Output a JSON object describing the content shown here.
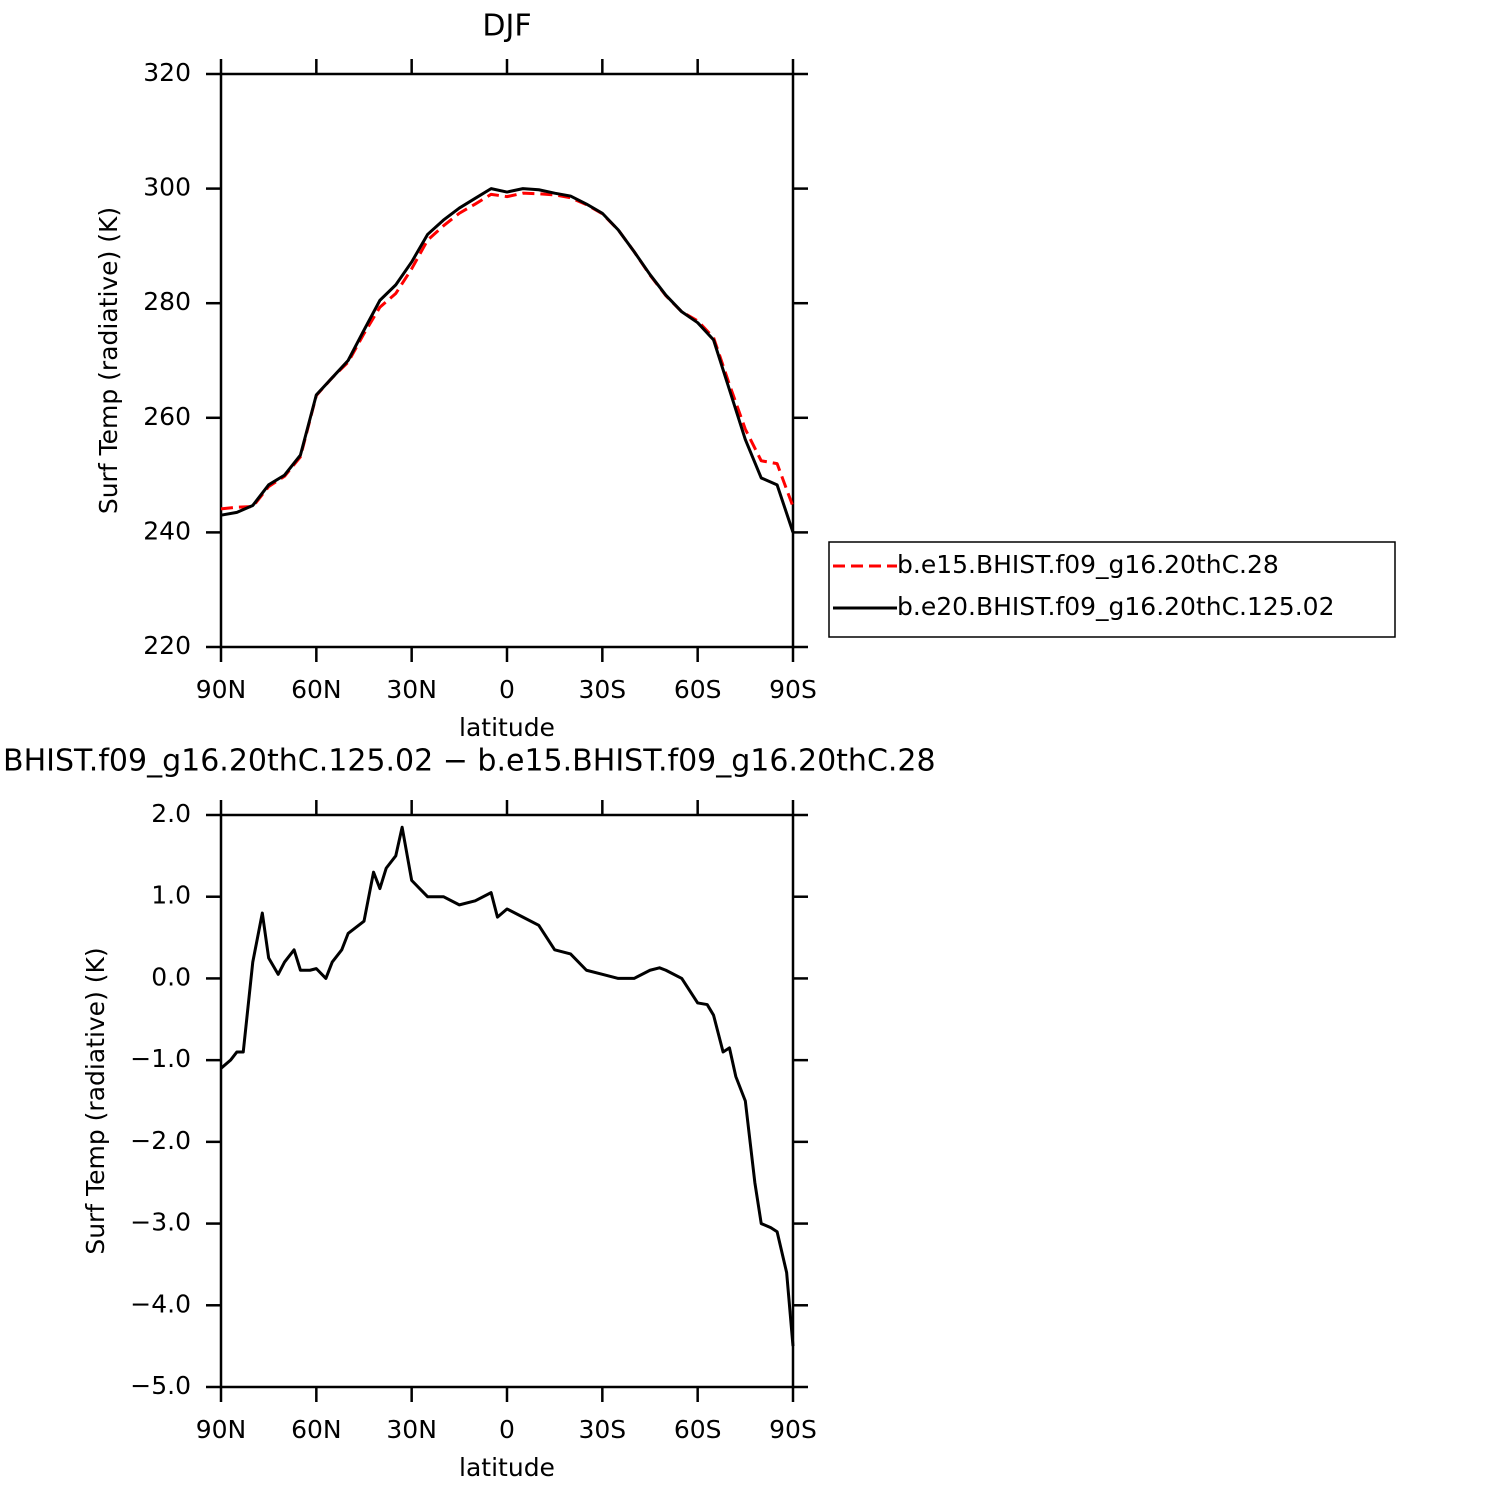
{
  "chart_data": [
    {
      "type": "line",
      "title": "DJF",
      "x_label": "latitude",
      "y_label": "Surf Temp (radiative) (K)",
      "x": [
        90,
        85,
        80,
        75,
        70,
        65,
        60,
        55,
        50,
        45,
        40,
        35,
        30,
        25,
        20,
        15,
        10,
        5,
        0,
        -5,
        -10,
        -15,
        -20,
        -25,
        -30,
        -35,
        -40,
        -45,
        -50,
        -55,
        -60,
        -65,
        -70,
        -75,
        -80,
        -85,
        -90
      ],
      "xlim": [
        90,
        -90
      ],
      "xticks": [
        {
          "value": 90,
          "label": "90N"
        },
        {
          "value": 60,
          "label": "60N"
        },
        {
          "value": 30,
          "label": "30N"
        },
        0,
        {
          "value": -30,
          "label": "30S"
        },
        {
          "value": -60,
          "label": "60S"
        },
        {
          "value": -90,
          "label": "90S"
        }
      ],
      "ylim": [
        220,
        320
      ],
      "yticks": [
        220,
        240,
        260,
        280,
        300,
        320
      ],
      "legend": "right",
      "series": [
        {
          "name": "b.e15.BHIST.f09_g16.20thC.28",
          "color": "#ff0000",
          "linestyle": "dashed",
          "values": [
            244.1,
            244.4,
            244.5,
            248.0,
            249.8,
            253.2,
            263.9,
            267.0,
            269.7,
            274.7,
            279.3,
            281.7,
            286.0,
            291.0,
            293.5,
            295.7,
            297.3,
            299.0,
            298.6,
            299.2,
            299.1,
            298.9,
            298.4,
            297.2,
            295.6,
            292.8,
            289.0,
            284.9,
            281.3,
            278.5,
            276.9,
            274.0,
            265.8,
            258.0,
            252.5,
            252.0,
            244.5
          ]
        },
        {
          "name": "b.e20.BHIST.f09_g16.20thC.125.02",
          "color": "#000000",
          "linestyle": "solid",
          "values": [
            243.0,
            243.5,
            244.7,
            248.3,
            250.0,
            253.5,
            264.0,
            267.0,
            270.0,
            275.3,
            280.5,
            283.2,
            287.2,
            292.0,
            294.5,
            296.6,
            298.3,
            300.0,
            299.4,
            300.0,
            299.8,
            299.2,
            298.7,
            297.3,
            295.7,
            292.8,
            289.0,
            285.0,
            281.4,
            278.5,
            276.6,
            273.6,
            264.9,
            256.2,
            249.5,
            248.3,
            240.0
          ]
        }
      ]
    },
    {
      "type": "line",
      "title": "BHIST.f09_g16.20thC.125.02 − b.e15.BHIST.f09_g16.20thC.28",
      "x_label": "latitude",
      "y_label": "Surf Temp (radiative) (K)",
      "x": [
        90,
        87,
        85,
        83,
        80,
        77,
        75,
        72,
        70,
        67,
        65,
        62,
        60,
        57,
        55,
        52,
        50,
        45,
        42,
        40,
        38,
        35,
        33,
        30,
        25,
        20,
        15,
        10,
        5,
        3,
        0,
        -5,
        -10,
        -15,
        -20,
        -25,
        -30,
        -35,
        -40,
        -45,
        -48,
        -50,
        -55,
        -60,
        -63,
        -65,
        -68,
        -70,
        -72,
        -75,
        -78,
        -80,
        -83,
        -85,
        -88,
        -90
      ],
      "xlim": [
        90,
        -90
      ],
      "xticks": [
        {
          "value": 90,
          "label": "90N"
        },
        {
          "value": 60,
          "label": "60N"
        },
        {
          "value": 30,
          "label": "30N"
        },
        0,
        {
          "value": -30,
          "label": "30S"
        },
        {
          "value": -60,
          "label": "60S"
        },
        {
          "value": -90,
          "label": "90S"
        }
      ],
      "ylim": [
        -5,
        2
      ],
      "yticks": [
        {
          "value": -5,
          "label": "−5.0"
        },
        {
          "value": -4,
          "label": "−4.0"
        },
        {
          "value": -3,
          "label": "−3.0"
        },
        {
          "value": -2,
          "label": "−2.0"
        },
        {
          "value": -1,
          "label": "−1.0"
        },
        {
          "value": 0,
          "label": "0.0"
        },
        {
          "value": 1,
          "label": "1.0"
        },
        {
          "value": 2,
          "label": "2.0"
        }
      ],
      "color": "#000000",
      "values": [
        -1.1,
        -1.0,
        -0.9,
        -0.9,
        0.2,
        0.8,
        0.25,
        0.05,
        0.2,
        0.35,
        0.1,
        0.1,
        0.12,
        0.0,
        0.2,
        0.35,
        0.55,
        0.7,
        1.3,
        1.1,
        1.35,
        1.5,
        1.85,
        1.2,
        1.0,
        1.0,
        0.9,
        0.95,
        1.05,
        0.75,
        0.85,
        0.75,
        0.65,
        0.35,
        0.3,
        0.1,
        0.05,
        0.0,
        0.0,
        0.1,
        0.13,
        0.1,
        0.0,
        -0.3,
        -0.32,
        -0.45,
        -0.9,
        -0.85,
        -1.2,
        -1.5,
        -2.5,
        -3.0,
        -3.05,
        -3.1,
        -3.6,
        -4.5
      ]
    }
  ]
}
